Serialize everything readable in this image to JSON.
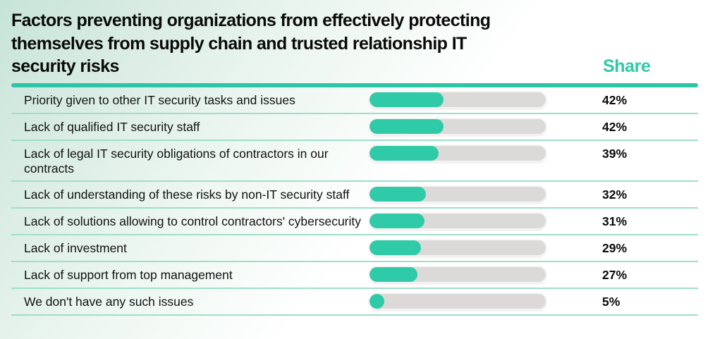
{
  "title": "Factors preventing organizations from effectively protecting themselves from supply chain and trusted relationship IT security risks",
  "share_header": "Share",
  "colors": {
    "accent_fill": "#2fcba8",
    "header_rule": "#2cc6a6",
    "row_divider": "#9edfcc",
    "bar_track": "#dcdad8",
    "share_header_text": "#2fc9a7",
    "background_tint": "#c7e4d9"
  },
  "chart_data": {
    "type": "bar",
    "orientation": "horizontal",
    "title": "Factors preventing organizations from effectively protecting themselves from supply chain and trusted relationship IT security risks",
    "value_column_label": "Share",
    "unit": "%",
    "xlim": [
      0,
      100
    ],
    "grid": false,
    "legend": false,
    "categories": [
      "Priority given to other IT security tasks and issues",
      "Lack of qualified IT security staff",
      "Lack of legal IT security obligations of contractors in our contracts",
      "Lack of understanding of these risks by non-IT security staff",
      "Lack of solutions allowing to control contractors' cybersecurity",
      "Lack of investment",
      "Lack of support from top management",
      "We don't have any such issues"
    ],
    "values": [
      42,
      42,
      39,
      32,
      31,
      29,
      27,
      5
    ],
    "display_values": [
      "42%",
      "42%",
      "39%",
      "32%",
      "31%",
      "29%",
      "27%",
      "5%"
    ]
  }
}
